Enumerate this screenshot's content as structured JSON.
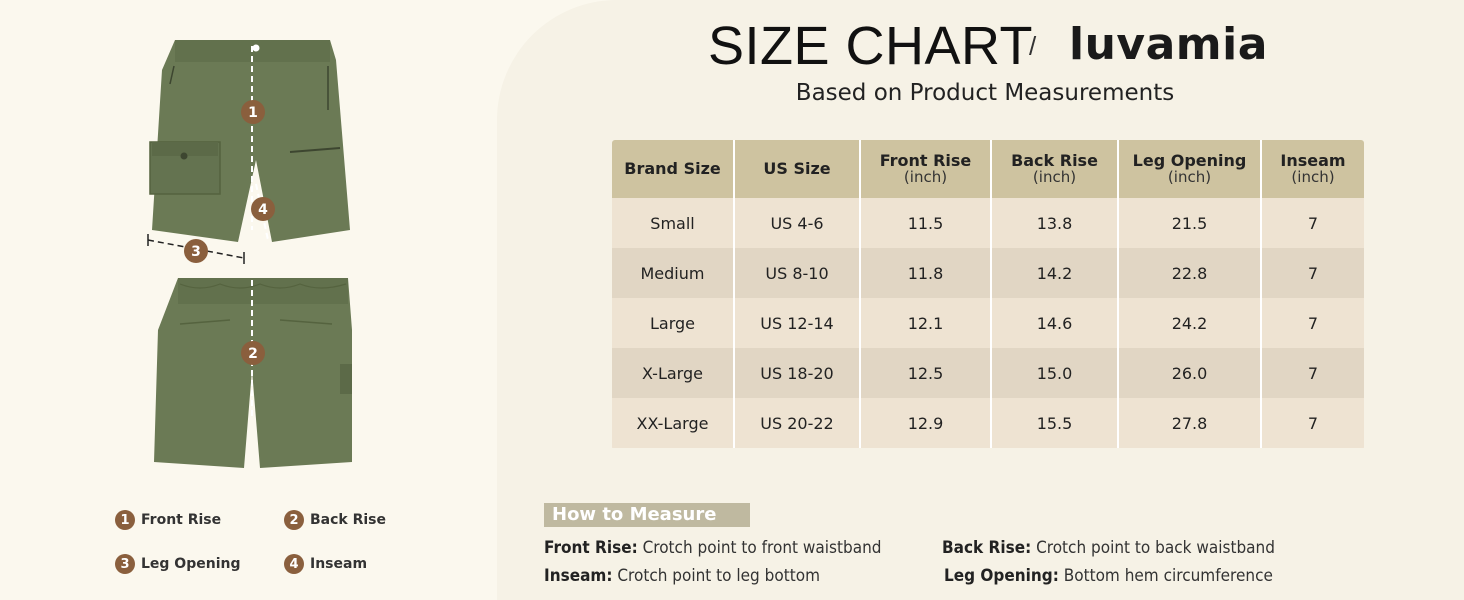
{
  "header": {
    "title": "SIZE CHART",
    "separator": "/",
    "brand": "luvamia",
    "subtitle": "Based on Product Measurements"
  },
  "table": {
    "columns": [
      {
        "label": "Brand Size",
        "unit": ""
      },
      {
        "label": "US Size",
        "unit": ""
      },
      {
        "label": "Front Rise",
        "unit": "(inch)"
      },
      {
        "label": "Back Rise",
        "unit": "(inch)"
      },
      {
        "label": "Leg Opening",
        "unit": "(inch)"
      },
      {
        "label": "Inseam",
        "unit": "(inch)"
      }
    ],
    "rows": [
      [
        "Small",
        "US 4-6",
        "11.5",
        "13.8",
        "21.5",
        "7"
      ],
      [
        "Medium",
        "US 8-10",
        "11.8",
        "14.2",
        "22.8",
        "7"
      ],
      [
        "Large",
        "US 12-14",
        "12.1",
        "14.6",
        "24.2",
        "7"
      ],
      [
        "X-Large",
        "US 18-20",
        "12.5",
        "15.0",
        "26.0",
        "7"
      ],
      [
        "XX-Large",
        "US 20-22",
        "12.9",
        "15.5",
        "27.8",
        "7"
      ]
    ]
  },
  "how_to_measure": {
    "label": "How to Measure",
    "items": [
      {
        "term": "Front Rise:",
        "desc": "Crotch point to front waistband"
      },
      {
        "term": "Back Rise:",
        "desc": "Crotch point to back waistband"
      },
      {
        "term": "Inseam:",
        "desc": "Crotch point to leg bottom"
      },
      {
        "term": "Leg Opening:",
        "desc": "Bottom hem circumference"
      }
    ]
  },
  "legend": [
    {
      "num": "1",
      "label": "Front Rise"
    },
    {
      "num": "2",
      "label": "Back Rise"
    },
    {
      "num": "3",
      "label": "Leg Opening"
    },
    {
      "num": "4",
      "label": "Inseam"
    }
  ],
  "diagram_markers": [
    "1",
    "2",
    "3",
    "4"
  ],
  "colors": {
    "header_bg": "#cec3a0",
    "row_light": "#eee3d2",
    "row_dark": "#e1d6c4",
    "badge": "#8a5f3d",
    "shorts": "#6b7a55"
  }
}
